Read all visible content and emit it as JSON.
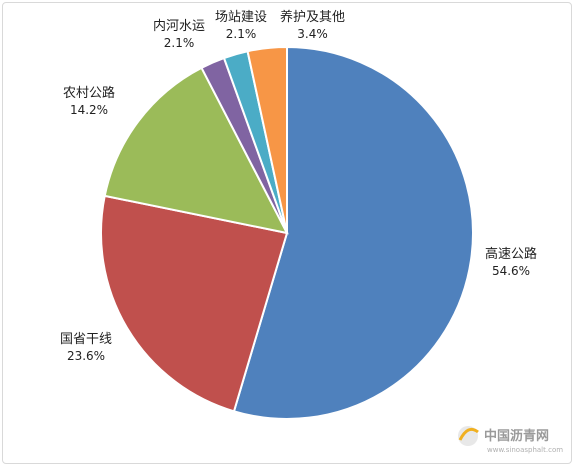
{
  "chart_data": {
    "type": "pie",
    "slices": [
      {
        "label": "高速公路",
        "value": 54.6,
        "value_text": "54.6%",
        "color": "#4f81bd"
      },
      {
        "label": "国省干线",
        "value": 23.6,
        "value_text": "23.6%",
        "color": "#c0504d"
      },
      {
        "label": "农村公路",
        "value": 14.2,
        "value_text": "14.2%",
        "color": "#9bbb59"
      },
      {
        "label": "内河水运",
        "value": 2.1,
        "value_text": "2.1%",
        "color": "#8064a2"
      },
      {
        "label": "场站建设",
        "value": 2.1,
        "value_text": "2.1%",
        "color": "#4bacc6"
      },
      {
        "label": "养护及其他",
        "value": 3.4,
        "value_text": "3.4%",
        "color": "#f79646"
      }
    ],
    "start": "12 o'clock",
    "direction": "clockwise"
  },
  "watermark": {
    "name": "中国沥青网",
    "url": "www.sinoasphalt.com"
  }
}
